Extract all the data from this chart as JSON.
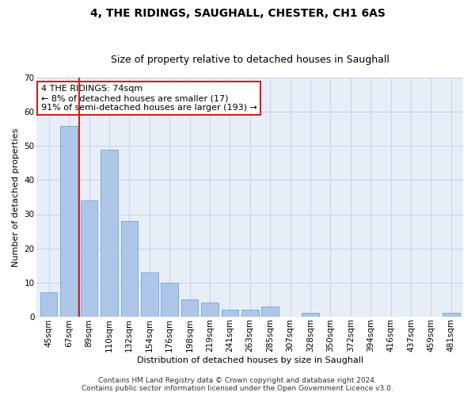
{
  "title": "4, THE RIDINGS, SAUGHALL, CHESTER, CH1 6AS",
  "subtitle": "Size of property relative to detached houses in Saughall",
  "xlabel": "Distribution of detached houses by size in Saughall",
  "ylabel": "Number of detached properties",
  "categories": [
    "45sqm",
    "67sqm",
    "89sqm",
    "110sqm",
    "132sqm",
    "154sqm",
    "176sqm",
    "198sqm",
    "219sqm",
    "241sqm",
    "263sqm",
    "285sqm",
    "307sqm",
    "328sqm",
    "350sqm",
    "372sqm",
    "394sqm",
    "416sqm",
    "437sqm",
    "459sqm",
    "481sqm"
  ],
  "values": [
    7,
    56,
    34,
    49,
    28,
    13,
    10,
    5,
    4,
    2,
    2,
    3,
    0,
    1,
    0,
    0,
    0,
    0,
    0,
    0,
    1
  ],
  "bar_color": "#aec6e8",
  "bar_edge_color": "#7aaed4",
  "vline_x": 1.5,
  "vline_color": "#cc2222",
  "annotation_text": "4 THE RIDINGS: 74sqm\n← 8% of detached houses are smaller (17)\n91% of semi-detached houses are larger (193) →",
  "annotation_box_color": "white",
  "annotation_box_edge_color": "#cc2222",
  "ylim": [
    0,
    70
  ],
  "yticks": [
    0,
    10,
    20,
    30,
    40,
    50,
    60,
    70
  ],
  "grid_color": "#c8d4e8",
  "background_color": "#e8eef8",
  "footer1": "Contains HM Land Registry data © Crown copyright and database right 2024.",
  "footer2": "Contains public sector information licensed under the Open Government Licence v3.0.",
  "title_fontsize": 10,
  "subtitle_fontsize": 9,
  "label_fontsize": 8,
  "tick_fontsize": 7.5,
  "annotation_fontsize": 8,
  "footer_fontsize": 6.5
}
